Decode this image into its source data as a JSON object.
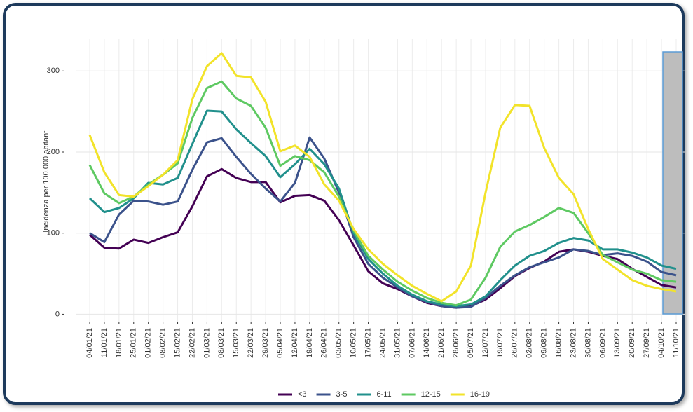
{
  "chart_data": {
    "type": "line",
    "y_label": "Incidenza per 100.000 abitanti",
    "categories": [
      "04/01/21",
      "11/01/21",
      "18/01/21",
      "25/01/21",
      "01/02/21",
      "08/02/21",
      "15/02/21",
      "22/02/21",
      "01/03/21",
      "08/03/21",
      "15/03/21",
      "22/03/21",
      "29/03/21",
      "05/04/21",
      "12/04/21",
      "19/04/21",
      "26/04/21",
      "03/05/21",
      "10/05/21",
      "17/05/21",
      "24/05/21",
      "31/05/21",
      "07/06/21",
      "14/06/21",
      "21/06/21",
      "28/06/21",
      "05/07/21",
      "12/07/21",
      "19/07/21",
      "26/07/21",
      "02/08/21",
      "09/08/21",
      "16/08/21",
      "23/08/21",
      "30/08/21",
      "06/09/21",
      "13/09/21",
      "20/09/21",
      "27/09/21",
      "04/10/21",
      "11/10/21"
    ],
    "series": [
      {
        "name": "<3",
        "color": "#440154",
        "values": [
          98,
          82,
          81,
          92,
          88,
          95,
          101,
          133,
          170,
          179,
          168,
          163,
          163,
          138,
          146,
          147,
          140,
          116,
          85,
          53,
          38,
          31,
          22,
          14,
          10,
          8,
          10,
          18,
          32,
          47,
          57,
          65,
          77,
          80,
          77,
          72,
          68,
          56,
          46,
          36,
          33
        ]
      },
      {
        "name": "3-5",
        "color": "#3b528b",
        "values": [
          100,
          89,
          123,
          140,
          139,
          135,
          139,
          178,
          212,
          217,
          194,
          173,
          155,
          139,
          162,
          218,
          192,
          150,
          95,
          62,
          45,
          33,
          22,
          15,
          10,
          8,
          9,
          20,
          35,
          48,
          58,
          64,
          70,
          80,
          78,
          73,
          75,
          72,
          65,
          52,
          48
        ]
      },
      {
        "name": "6-11",
        "color": "#21908c",
        "values": [
          143,
          126,
          131,
          143,
          162,
          160,
          168,
          210,
          251,
          250,
          228,
          211,
          195,
          169,
          185,
          204,
          185,
          155,
          100,
          68,
          50,
          35,
          24,
          16,
          12,
          10,
          12,
          22,
          42,
          60,
          72,
          78,
          88,
          94,
          91,
          80,
          80,
          76,
          70,
          60,
          56
        ]
      },
      {
        "name": "12-15",
        "color": "#5ec962",
        "values": [
          184,
          149,
          137,
          145,
          160,
          172,
          186,
          242,
          279,
          287,
          266,
          257,
          230,
          183,
          195,
          190,
          175,
          145,
          103,
          72,
          55,
          40,
          29,
          20,
          14,
          11,
          18,
          45,
          83,
          102,
          110,
          120,
          131,
          125,
          100,
          73,
          64,
          55,
          50,
          42,
          40
        ]
      },
      {
        "name": "16-19",
        "color": "#f2e32a",
        "values": [
          221,
          175,
          147,
          145,
          158,
          172,
          190,
          265,
          306,
          322,
          294,
          292,
          262,
          201,
          208,
          194,
          160,
          140,
          105,
          80,
          62,
          48,
          35,
          25,
          16,
          28,
          60,
          150,
          230,
          258,
          257,
          205,
          168,
          148,
          105,
          68,
          55,
          42,
          35,
          31,
          28
        ]
      }
    ],
    "ylim": [
      -10,
      340
    ],
    "yticks": [
      0,
      100,
      200,
      300
    ],
    "grid": true,
    "legend": "bottom"
  }
}
